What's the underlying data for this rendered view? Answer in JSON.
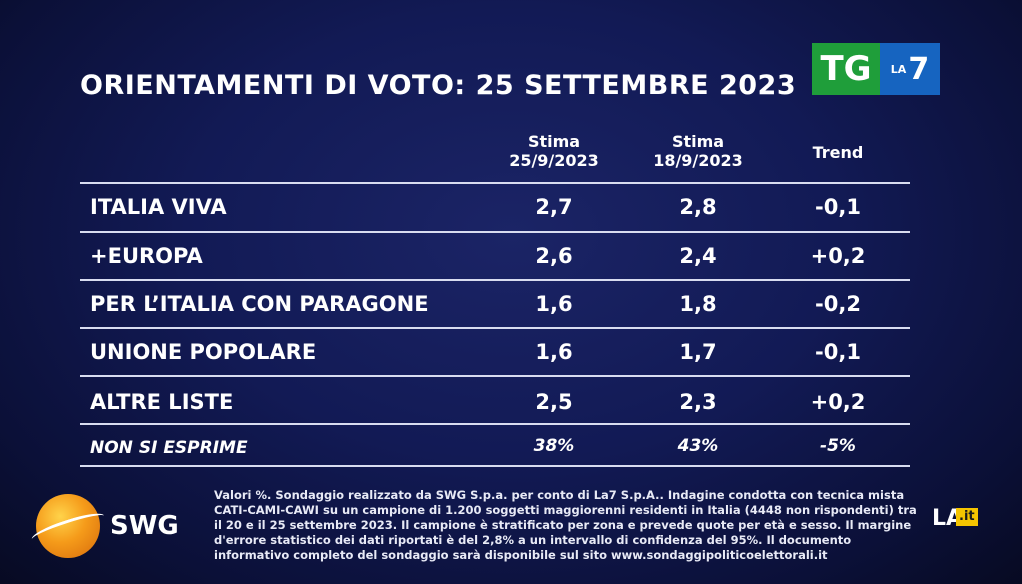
{
  "title": "ORIENTAMENTI DI VOTO: 25 SETTEMBRE 2023",
  "logo": {
    "tg": "TG",
    "la": "LA",
    "seven": "7"
  },
  "chart_data": {
    "type": "table",
    "columns": [
      {
        "line1": "Stima",
        "line2": "25/9/2023"
      },
      {
        "line1": "Stima",
        "line2": "18/9/2023"
      },
      {
        "line1": "Trend",
        "line2": ""
      }
    ],
    "rows": [
      {
        "label": "ITALIA VIVA",
        "values": [
          "2,7",
          "2,8",
          "-0,1"
        ]
      },
      {
        "label": "+EUROPA",
        "values": [
          "2,6",
          "2,4",
          "+0,2"
        ]
      },
      {
        "label": "PER L’ITALIA CON PARAGONE",
        "values": [
          "1,6",
          "1,8",
          "-0,2"
        ]
      },
      {
        "label": "UNIONE POPOLARE",
        "values": [
          "1,6",
          "1,7",
          "-0,1"
        ]
      },
      {
        "label": "ALTRE LISTE",
        "values": [
          "2,5",
          "2,3",
          "+0,2"
        ]
      },
      {
        "label": "NON SI ESPRIME",
        "values": [
          "38%",
          "43%",
          "-5%"
        ]
      }
    ]
  },
  "footer": {
    "swg": "SWG",
    "note": "Valori %. Sondaggio realizzato da SWG S.p.a. per conto di La7 S.p.A.. Indagine condotta con tecnica mista CATI-CAMI-CAWI su un campione di 1.200 soggetti maggiorenni residenti in Italia (4448 non rispondenti) tra il 20 e il 25 settembre 2023. Il campione è stratificato per zona e prevede quote per età e sesso. Il margine d'errore statistico dei dati riportati è del 2,8% a un intervallo di confidenza del 95%. Il documento informativo completo del sondaggio sarà disponibile sul sito www.sondaggipoliticoelettorali.it",
    "la7_mark": "LA7",
    "la7_it": ".it"
  }
}
